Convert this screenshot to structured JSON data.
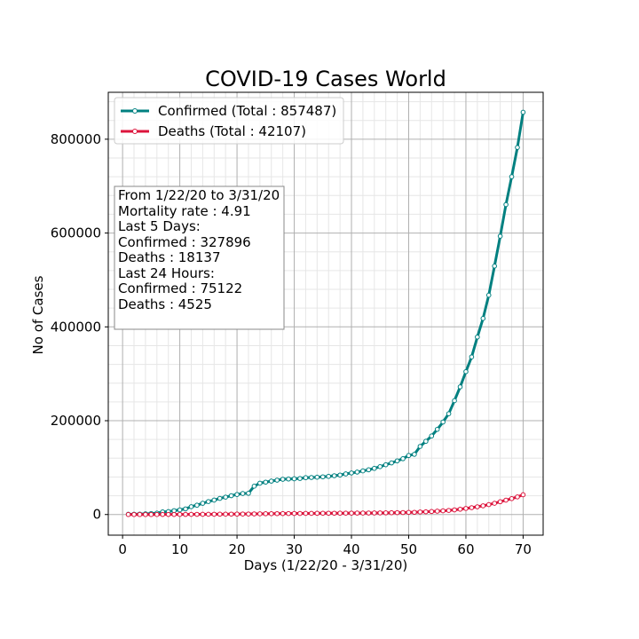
{
  "chart_data": {
    "type": "line",
    "title": "COVID-19 Cases World",
    "xlabel": "Days (1/22/20 - 3/31/20)",
    "ylabel": "No of Cases",
    "xlim": [
      -2.5,
      73.5
    ],
    "ylim": [
      -44000,
      900000
    ],
    "xticks": [
      0,
      10,
      20,
      30,
      40,
      50,
      60,
      70
    ],
    "yticks": [
      0,
      200000,
      400000,
      600000,
      800000
    ],
    "grid": "major and minor",
    "legend_position": "top-left",
    "x": [
      1,
      2,
      3,
      4,
      5,
      6,
      7,
      8,
      9,
      10,
      11,
      12,
      13,
      14,
      15,
      16,
      17,
      18,
      19,
      20,
      21,
      22,
      23,
      24,
      25,
      26,
      27,
      28,
      29,
      30,
      31,
      32,
      33,
      34,
      35,
      36,
      37,
      38,
      39,
      40,
      41,
      42,
      43,
      44,
      45,
      46,
      47,
      48,
      49,
      50,
      51,
      52,
      53,
      54,
      55,
      56,
      57,
      58,
      59,
      60,
      61,
      62,
      63,
      64,
      65,
      66,
      67,
      68,
      69,
      70
    ],
    "series": [
      {
        "name": "Confirmed (Total : 857487)",
        "color": "#008080",
        "values": [
          555,
          654,
          941,
          1434,
          2118,
          2927,
          5578,
          6166,
          8234,
          9927,
          12038,
          16787,
          19881,
          23892,
          27635,
          30794,
          34391,
          37120,
          40150,
          42762,
          44802,
          45221,
          60368,
          66885,
          69030,
          71224,
          73258,
          75136,
          75639,
          76197,
          76819,
          78572,
          78958,
          79561,
          80406,
          81388,
          82746,
          84112,
          86604,
          88585,
          90443,
          93016,
          95314,
          98425,
          102050,
          106099,
          109991,
          114381,
          119003,
          125865,
          128343,
          145193,
          156097,
          167449,
          181546,
          197168,
          214915,
          242713,
          272167,
          304528,
          335955,
          378287,
          417966,
          467594,
          529591,
          593291,
          660706,
          720117,
          782365,
          857487
        ]
      },
      {
        "name": "Deaths (Total : 42107)",
        "color": "#dc143c",
        "values": [
          17,
          18,
          26,
          42,
          56,
          82,
          131,
          133,
          171,
          213,
          259,
          362,
          426,
          492,
          564,
          634,
          719,
          806,
          906,
          1013,
          1113,
          1118,
          1371,
          1523,
          1666,
          1770,
          1868,
          2007,
          2122,
          2247,
          2251,
          2458,
          2469,
          2629,
          2708,
          2770,
          2814,
          2872,
          2941,
          2996,
          3085,
          3160,
          3254,
          3348,
          3460,
          3558,
          3802,
          3988,
          4262,
          4615,
          4720,
          5404,
          5819,
          6440,
          7126,
          7905,
          8733,
          9867,
          11299,
          12973,
          14623,
          16497,
          18615,
          21181,
          23970,
          27198,
          30652,
          33925,
          37582,
          42107
        ]
      }
    ]
  },
  "info_box": {
    "lines": [
      "From 1/22/20 to 3/31/20",
      "Mortality rate : 4.91",
      "Last 5 Days:",
      "Confirmed : 327896",
      "Deaths : 18137",
      "Last 24 Hours:",
      "Confirmed : 75122",
      "Deaths : 4525"
    ]
  }
}
